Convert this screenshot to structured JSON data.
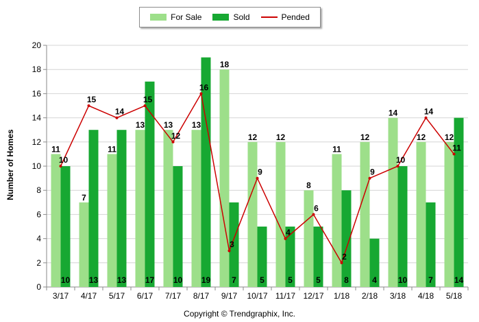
{
  "legend": {
    "items": [
      {
        "label": "For Sale",
        "color": "#9ddf8a",
        "kind": "bar"
      },
      {
        "label": "Sold",
        "color": "#17a832",
        "kind": "bar"
      },
      {
        "label": "Pended",
        "color": "#cc0000",
        "kind": "line"
      }
    ]
  },
  "copyright": "Copyright © Trendgraphix, Inc.",
  "chart_data": {
    "type": "bar",
    "categories": [
      "3/17",
      "4/17",
      "5/17",
      "6/17",
      "7/17",
      "8/17",
      "9/17",
      "10/17",
      "11/17",
      "12/17",
      "1/18",
      "2/18",
      "3/18",
      "4/18",
      "5/18"
    ],
    "series": [
      {
        "name": "For Sale",
        "type": "bar",
        "color": "#9ddf8a",
        "values": [
          11,
          7,
          11,
          13,
          13,
          13,
          18,
          12,
          12,
          8,
          11,
          12,
          14,
          12,
          12
        ]
      },
      {
        "name": "Sold",
        "type": "bar",
        "color": "#17a832",
        "values": [
          10,
          13,
          13,
          17,
          10,
          19,
          7,
          5,
          5,
          5,
          8,
          4,
          10,
          7,
          14
        ]
      },
      {
        "name": "Pended",
        "type": "line",
        "color": "#cc0000",
        "values": [
          10,
          15,
          14,
          15,
          12,
          16,
          3,
          9,
          4,
          6,
          2,
          9,
          10,
          14,
          11
        ]
      }
    ],
    "ylabel": "Number of Homes",
    "ylim": [
      0,
      20
    ],
    "yticks": [
      0,
      2,
      4,
      6,
      8,
      10,
      12,
      14,
      16,
      18,
      20
    ],
    "grid": true,
    "legend_position": "top"
  }
}
